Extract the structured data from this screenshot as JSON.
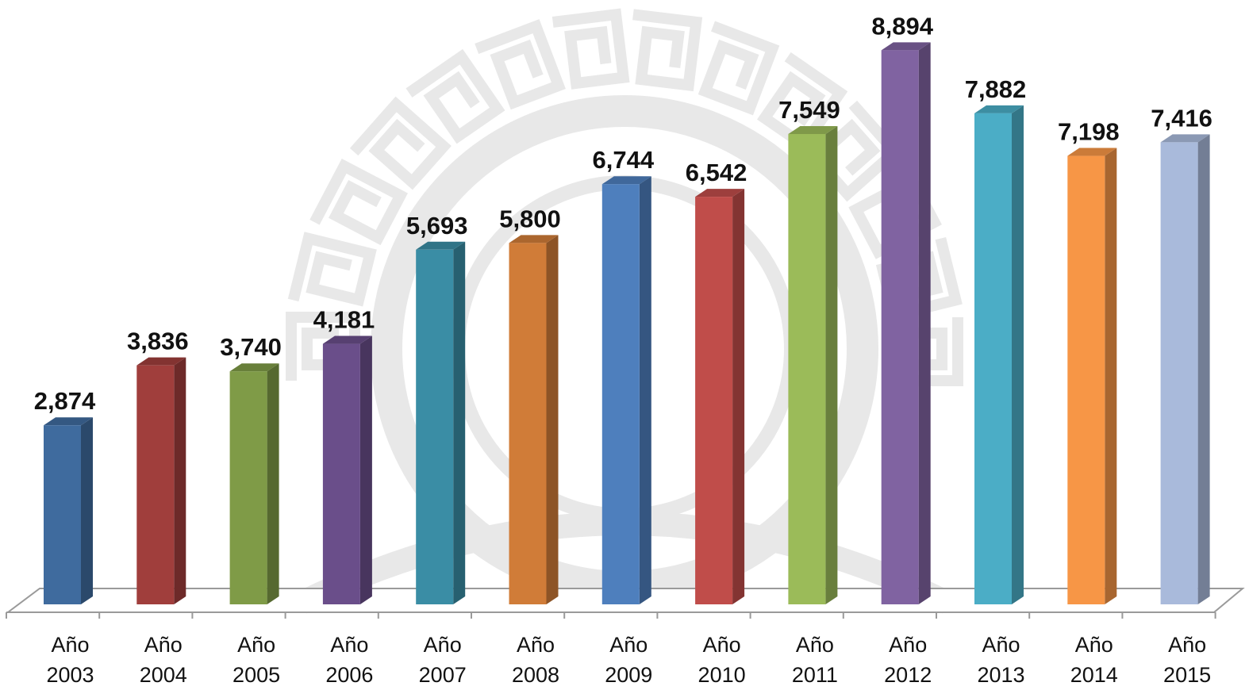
{
  "chart_data": {
    "type": "bar",
    "style": "3d-column",
    "categories": [
      [
        "Año",
        "2003"
      ],
      [
        "Año",
        "2004"
      ],
      [
        "Año",
        "2005"
      ],
      [
        "Año",
        "2006"
      ],
      [
        "Año",
        "2007"
      ],
      [
        "Año",
        "2008"
      ],
      [
        "Año",
        "2009"
      ],
      [
        "Año",
        "2010"
      ],
      [
        "Año",
        "2011"
      ],
      [
        "Año",
        "2012"
      ],
      [
        "Año",
        "2013"
      ],
      [
        "Año",
        "2014"
      ],
      [
        "Año",
        "2015"
      ]
    ],
    "values": [
      2874,
      3836,
      3740,
      4181,
      5693,
      5800,
      6744,
      6542,
      7549,
      8894,
      7882,
      7198,
      7416
    ],
    "value_labels": [
      "2,874",
      "3,836",
      "3,740",
      "4,181",
      "5,693",
      "5,800",
      "6,744",
      "6,542",
      "7,549",
      "8,894",
      "7,882",
      "7,198",
      "7,416"
    ],
    "colors": [
      "#3F6B9E",
      "#A03E3C",
      "#7F9B47",
      "#6A4E8A",
      "#3A8DA5",
      "#D07C38",
      "#4E7FBD",
      "#C04D4A",
      "#9BBB59",
      "#8063A1",
      "#4BADC6",
      "#F79646",
      "#A9BADB"
    ],
    "ylim": [
      0,
      9000
    ],
    "grid": false,
    "legend": "none",
    "title": "",
    "xlabel": "",
    "ylabel": ""
  },
  "watermark": {
    "type": "seal",
    "color": "#E8E8E8"
  }
}
